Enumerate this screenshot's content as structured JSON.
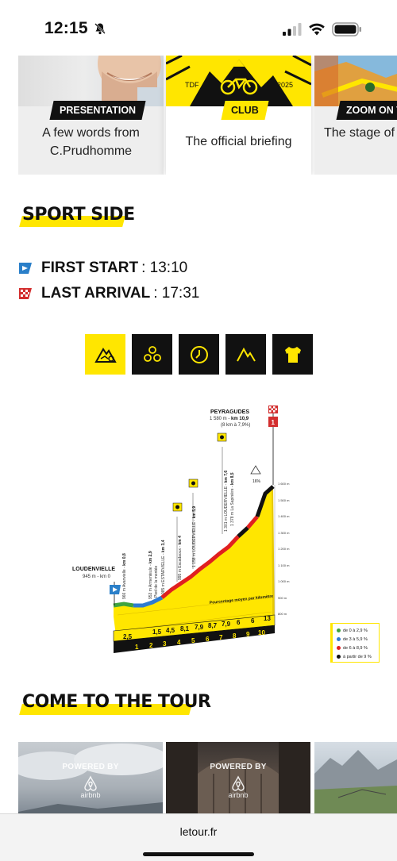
{
  "status_bar": {
    "time": "12:15"
  },
  "cards": [
    {
      "tag": "PRESENTATION",
      "text": "A few words from C.Prudhomme"
    },
    {
      "tag": "CLUB",
      "text": "The official briefing",
      "logo_left": "TDF",
      "logo_right": "2025"
    },
    {
      "tag": "ZOOM ON THE",
      "text": "The stage of t vide"
    }
  ],
  "sport_side": {
    "title": "SPORT SIDE",
    "first_start_label": "FIRST START",
    "first_start_time": ": 13:10",
    "last_arrival_label": "LAST ARRIVAL",
    "last_arrival_time": ": 17:31"
  },
  "tabs": [
    {
      "icon": "mountain-profile-icon",
      "selected": true
    },
    {
      "icon": "bubbles-icon",
      "selected": false
    },
    {
      "icon": "clock-icon",
      "selected": false
    },
    {
      "icon": "climb-icon",
      "selected": false
    },
    {
      "icon": "jersey-icon",
      "selected": false
    }
  ],
  "profile": {
    "start_name": "LOUDENVIELLE",
    "start_info": "945 m - km 0",
    "finish_name": "PEYRAGUDES",
    "finish_info_a": "1 580 m -",
    "finish_km": "km 10,9",
    "finish_info_b": "(8 km à 7,9%)",
    "finish_number": "1",
    "gradient_badge": "16%",
    "gradient_caption": "Pourcentage moyen par kilomètre",
    "waypoints": [
      {
        "text": "966 m Avanvielle -",
        "km": "km 0,8"
      },
      {
        "text": "953 m Armenteule -",
        "km": "km 2,9"
      },
      {
        "text": "Pied de la montée"
      },
      {
        "text": "985 m ESTARVIELLE -",
        "km": "km 3,4"
      },
      {
        "text": "995 m Escadaoux -",
        "km": "km 4"
      },
      {
        "text": "1 158 m LOUDERVIELLE -",
        "km": "km 5,9"
      },
      {
        "text": "1 301 m LOUDERVIELLE -",
        "km": "km 7,6"
      },
      {
        "text": "1 378 m La Sapinière -",
        "km": "km 8,5"
      }
    ],
    "percentages": [
      "2,5",
      "1,5",
      "4,5",
      "8,1",
      "7,9",
      "8,7",
      "7,9",
      "6",
      "6",
      "13"
    ],
    "km_marks": [
      "1",
      "2",
      "3",
      "4",
      "5",
      "6",
      "7",
      "8",
      "9",
      "10"
    ],
    "altitudes": [
      "1 600 m",
      "1 500 m",
      "1 400 m",
      "1 300 m",
      "1 200 m",
      "1 100 m",
      "1 000 m",
      "900 m",
      "800 m"
    ],
    "legend": [
      {
        "color": "#3fa33f",
        "label": "de 0 à 2,9 %"
      },
      {
        "color": "#2e7bd1",
        "label": "de 3 à 5,9 %"
      },
      {
        "color": "#e02020",
        "label": "de 6 à 8,9 %"
      },
      {
        "color": "#111111",
        "label": "à partir de 9 %"
      }
    ]
  },
  "come_to_tour": {
    "title": "COME TO THE TOUR",
    "cards": [
      {
        "powered": "POWERED BY",
        "brand": "airbnb"
      },
      {
        "powered": "POWERED BY",
        "brand": "airbnb"
      },
      {
        "powered": "",
        "brand": ""
      }
    ]
  },
  "url_bar": {
    "url": "letour.fr"
  }
}
